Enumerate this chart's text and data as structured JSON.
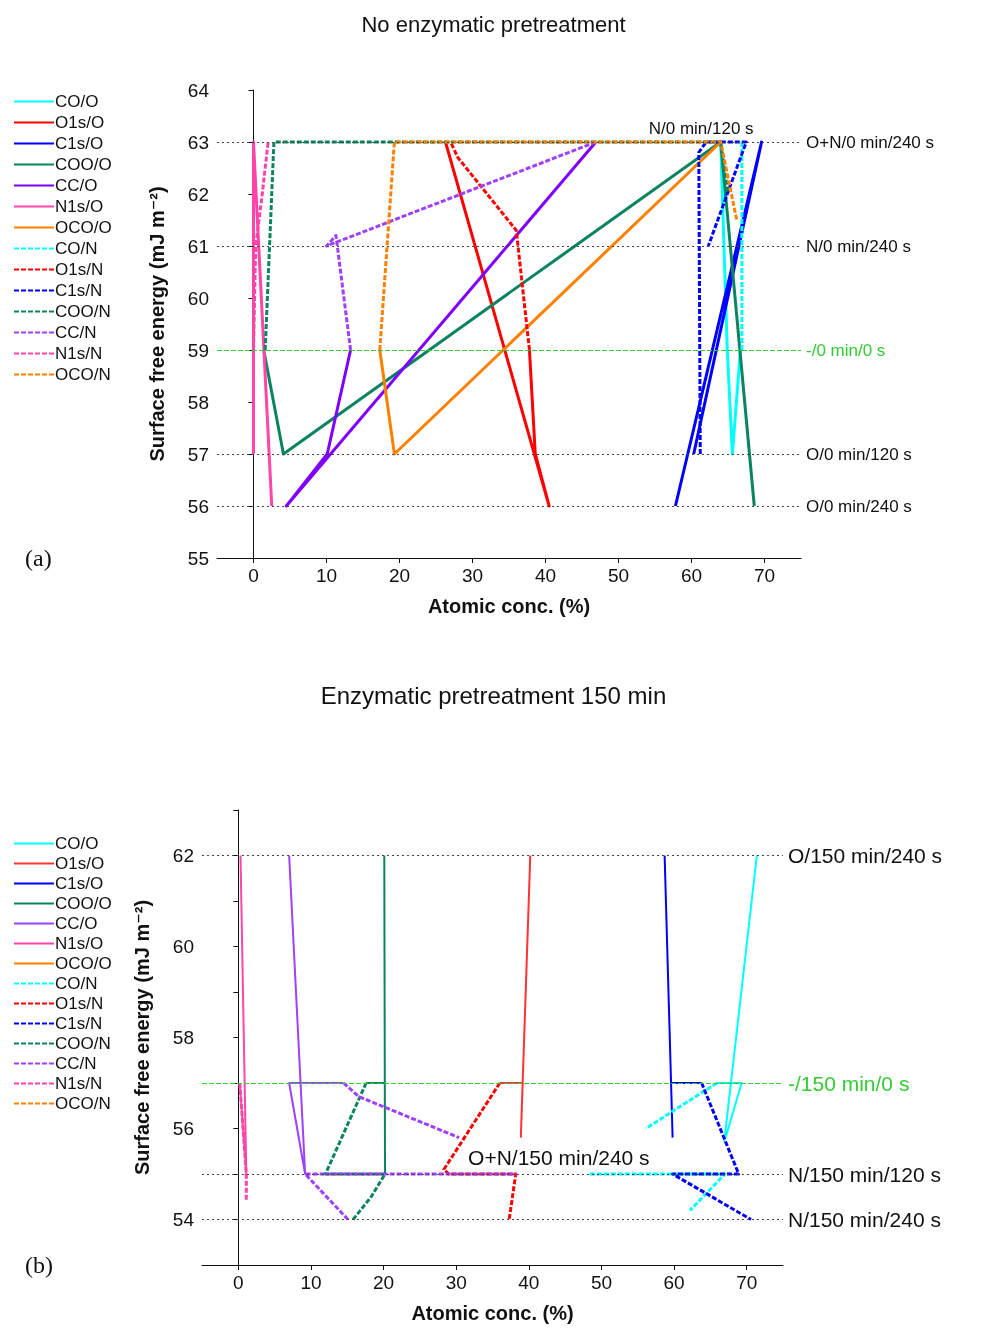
{
  "chart_data": [
    {
      "type": "line",
      "title": "No enzymatic pretreatment",
      "xlabel": "Atomic conc. (%)",
      "ylabel": "Surface free energy (mJ m⁻²)",
      "xlim": [
        -5,
        75
      ],
      "xticks": [
        0,
        10,
        20,
        30,
        40,
        50,
        60,
        70
      ],
      "ylim": [
        55,
        64
      ],
      "yticks": [
        55,
        56,
        57,
        58,
        59,
        60,
        61,
        62,
        63,
        64
      ],
      "legend": "left",
      "grid": false,
      "series": [
        {
          "name": "CO/O",
          "color": "#00ffff",
          "line_style": "solid",
          "x": [
            64,
            64.9,
            65.6,
            66.7
          ],
          "values": [
            63,
            59,
            57,
            59
          ]
        },
        {
          "name": "O1s/O",
          "color": "#ff0000",
          "line_style": "solid",
          "x": [
            26.3,
            40.5,
            38.6,
            37.8
          ],
          "values": [
            63,
            56,
            57,
            59
          ]
        },
        {
          "name": "C1s/O",
          "color": "#0000ff",
          "line_style": "solid",
          "x": [
            57.8,
            69.6,
            60.3
          ],
          "values": [
            56,
            63,
            57
          ]
        },
        {
          "name": "COO/O",
          "color": "#0a8460",
          "line_style": "solid",
          "x": [
            1.4,
            4.1,
            64,
            68.6
          ],
          "values": [
            59,
            57,
            63,
            56
          ]
        },
        {
          "name": "CC/O",
          "color": "#8000ff",
          "line_style": "solid",
          "x": [
            13.3,
            10.1,
            4.5,
            46.9
          ],
          "values": [
            59,
            57,
            56,
            63
          ]
        },
        {
          "name": "N1s/O",
          "color": "#ff44aa",
          "line_style": "solid",
          "x": [
            0,
            0,
            2.5
          ],
          "values": [
            57,
            63,
            56
          ]
        },
        {
          "name": "OCO/O",
          "color": "#ff8000",
          "line_style": "solid",
          "x": [
            17.3,
            19.3,
            64
          ],
          "values": [
            59,
            57,
            63
          ]
        },
        {
          "name": "CO/N",
          "color": "#00ffff",
          "line_style": "dashed",
          "x": [
            66.9,
            66.9
          ],
          "values": [
            59,
            63
          ]
        },
        {
          "name": "O1s/N",
          "color": "#ff0000",
          "line_style": "dashed",
          "x": [
            37.8,
            36,
            28,
            27
          ],
          "values": [
            59,
            61.3,
            62.7,
            63
          ]
        },
        {
          "name": "C1s/N",
          "color": "#0000ff",
          "line_style": "dashed",
          "x": [
            61.2,
            61,
            62,
            67.5,
            62.3
          ],
          "values": [
            57,
            62.8,
            63,
            63,
            61
          ]
        },
        {
          "name": "COO/N",
          "color": "#0a8460",
          "line_style": "dashed",
          "x": [
            1.6,
            2.8,
            64,
            65
          ],
          "values": [
            59,
            63,
            63,
            62
          ]
        },
        {
          "name": "CC/N",
          "color": "#a040ff",
          "line_style": "dashed",
          "x": [
            13.3,
            11.3,
            10,
            46.9
          ],
          "values": [
            59,
            61.2,
            61,
            63
          ]
        },
        {
          "name": "N1s/N",
          "color": "#ff44aa",
          "line_style": "dashed",
          "x": [
            0,
            0.3,
            1.2,
            2
          ],
          "values": [
            59,
            61,
            62,
            63
          ]
        },
        {
          "name": "OCO/N",
          "color": "#ff8000",
          "line_style": "dashed",
          "x": [
            17.3,
            19.3,
            64,
            66.2
          ],
          "values": [
            59,
            63,
            63,
            61.5
          ]
        }
      ],
      "ref_lines": [
        {
          "axis": "y",
          "value": 63,
          "label": "O+N/0 min/240 s",
          "color": "#444444",
          "line_style": "dotted"
        },
        {
          "axis": "y",
          "value": 61,
          "label": "N/0 min/240 s",
          "color": "#444444",
          "line_style": "dotted"
        },
        {
          "axis": "y",
          "value": 59,
          "label": "-/0 min/0 s",
          "color": "#33cc33",
          "line_style": "dashed"
        },
        {
          "axis": "y",
          "value": 57,
          "label": "O/0 min/120 s",
          "color": "#444444",
          "line_style": "dotted"
        },
        {
          "axis": "y",
          "value": 56,
          "label": "O/0 min/240 s",
          "color": "#444444",
          "line_style": "dotted"
        }
      ],
      "annotations": [
        {
          "text": "N/0 min/120 s",
          "x": 54,
          "y": 63
        },
        "(a)"
      ]
    },
    {
      "type": "line",
      "title": "Enzymatic pretreatment 150 min",
      "xlabel": "Atomic conc. (%)",
      "ylabel": "Surface free energy (mJ m⁻²)",
      "xlim": [
        -5,
        75
      ],
      "xticks": [
        0,
        10,
        20,
        30,
        40,
        50,
        60,
        70
      ],
      "ylim": [
        53,
        63
      ],
      "yticks": [
        {
          "value": 53,
          "label": null
        },
        54,
        {
          "value": 55,
          "label": null
        },
        56,
        {
          "value": 57,
          "label": null
        },
        58,
        {
          "value": 59,
          "label": null
        },
        60,
        {
          "value": 61,
          "label": null
        },
        62,
        {
          "value": 63,
          "label": null
        }
      ],
      "legend": "left",
      "grid": false,
      "series": [
        {
          "name": "CO/O",
          "color": "#00ffff",
          "line_style": "solid",
          "x": [
            71.4,
            66.9,
            null,
            65.9,
            69.3,
            67.1
          ],
          "values": [
            62,
            55.7,
            null,
            57,
            57,
            55.8
          ]
        },
        {
          "name": "O1s/O",
          "color": "#ff3333",
          "line_style": "solid",
          "x": [
            40.2,
            38.9,
            null,
            36,
            39.1
          ],
          "values": [
            62,
            55.8,
            null,
            57,
            57
          ]
        },
        {
          "name": "C1s/O",
          "color": "#0000ff",
          "line_style": "solid",
          "x": [
            58.7,
            59.8,
            null,
            59.6,
            63.8
          ],
          "values": [
            62,
            55.8,
            null,
            57,
            57
          ]
        },
        {
          "name": "COO/O",
          "color": "#0a8460",
          "line_style": "solid",
          "x": [
            20.1,
            20.2,
            null,
            17.6,
            20.1
          ],
          "values": [
            62,
            55,
            null,
            57,
            57
          ]
        },
        {
          "name": "CC/O",
          "color": "#a040ff",
          "line_style": "solid",
          "x": [
            7,
            9.2,
            7,
            14.5
          ],
          "values": [
            62,
            55,
            57,
            57
          ]
        },
        {
          "name": "N1s/O",
          "color": "#ff44aa",
          "line_style": "solid",
          "x": [
            0.3,
            1.1,
            0.2
          ],
          "values": [
            62,
            55,
            57
          ]
        },
        {
          "name": "OCO/O",
          "color": "#ff8000",
          "line_style": "solid"
        },
        {
          "name": "CO/N",
          "color": "#00ffff",
          "line_style": "dashed",
          "x": [
            65.9,
            56.1,
            null,
            48.4,
            67,
            62.2
          ],
          "values": [
            57,
            56,
            null,
            55,
            55,
            54.2
          ]
        },
        {
          "name": "O1s/N",
          "color": "#ff0000",
          "line_style": "dashed",
          "x": [
            36,
            28.3,
            29,
            38.2,
            37.3
          ],
          "values": [
            57,
            55.1,
            55,
            55,
            54
          ]
        },
        {
          "name": "C1s/N",
          "color": "#0000ff",
          "line_style": "dashed",
          "x": [
            63.8,
            68.9,
            59.8,
            70.6
          ],
          "values": [
            57,
            55,
            55,
            54
          ]
        },
        {
          "name": "COO/N",
          "color": "#0a8460",
          "line_style": "dashed",
          "x": [
            17.6,
            12,
            20.2,
            18.3,
            15.8
          ],
          "values": [
            57,
            55,
            55,
            54.5,
            54
          ]
        },
        {
          "name": "CC/N",
          "color": "#a040ff",
          "line_style": "dashed",
          "x": [
            15.1,
            9.2,
            38.4,
            null,
            14.5,
            16.6,
            30.4
          ],
          "values": [
            54,
            55,
            55,
            null,
            57,
            56.7,
            55.8
          ]
        },
        {
          "name": "N1s/N",
          "color": "#ff44aa",
          "line_style": "dashed",
          "x": [
            0.2,
            1.1,
            1.1
          ],
          "values": [
            57,
            55,
            54.4
          ]
        },
        {
          "name": "OCO/N",
          "color": "#ff8000",
          "line_style": "dashed"
        }
      ],
      "ref_lines": [
        {
          "axis": "y",
          "value": 62,
          "label": "O/150 min/240 s",
          "color": "#444444",
          "line_style": "dotted"
        },
        {
          "axis": "y",
          "value": 57,
          "label": "-/150 min/0 s",
          "color": "#33cc33",
          "line_style": "dashed"
        },
        {
          "axis": "y",
          "value": 55,
          "label": "N/150 min/120 s",
          "color": "#444444",
          "line_style": "dotted"
        },
        {
          "axis": "y",
          "value": 54,
          "label": "N/150 min/240 s",
          "color": "#444444",
          "line_style": "dotted"
        }
      ],
      "annotations": [
        {
          "text": "O+N/150 min/240 s",
          "x": 31.5,
          "y": 55
        },
        "(b)"
      ]
    }
  ]
}
